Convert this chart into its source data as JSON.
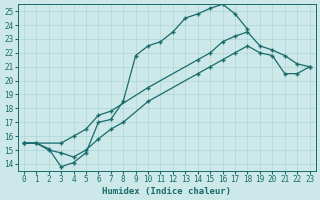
{
  "xlabel": "Humidex (Indice chaleur)",
  "xlim": [
    -0.5,
    23.5
  ],
  "ylim": [
    13.5,
    25.5
  ],
  "xticks": [
    0,
    1,
    2,
    3,
    4,
    5,
    6,
    7,
    8,
    9,
    10,
    11,
    12,
    13,
    14,
    15,
    16,
    17,
    18,
    19,
    20,
    21,
    22,
    23
  ],
  "yticks": [
    14,
    15,
    16,
    17,
    18,
    19,
    20,
    21,
    22,
    23,
    24,
    25
  ],
  "bg_color": "#cce8e8",
  "grid_color": "#b0d4d4",
  "line_color": "#1a6b6b",
  "line1_x": [
    0,
    1,
    2,
    3,
    4,
    5,
    6,
    7,
    8,
    9,
    10,
    11,
    12,
    13,
    14,
    15,
    16,
    17,
    18
  ],
  "line1_y": [
    15.5,
    15.5,
    15.1,
    13.8,
    14.1,
    14.8,
    17.0,
    17.2,
    18.5,
    21.8,
    22.5,
    22.8,
    23.5,
    24.5,
    24.8,
    25.2,
    25.5,
    24.8,
    23.7
  ],
  "line2_x": [
    0,
    3,
    4,
    5,
    6,
    7,
    10,
    14,
    15,
    16,
    17,
    18,
    19,
    20,
    21,
    22,
    23
  ],
  "line2_y": [
    15.5,
    15.5,
    16.0,
    16.5,
    17.5,
    17.8,
    19.5,
    21.5,
    22.0,
    22.8,
    23.2,
    23.5,
    22.5,
    22.2,
    21.8,
    21.2,
    21.0
  ],
  "line3_x": [
    0,
    1,
    2,
    3,
    4,
    5,
    6,
    7,
    8,
    10,
    14,
    15,
    16,
    17,
    18,
    19,
    20,
    21,
    22,
    23
  ],
  "line3_y": [
    15.5,
    15.5,
    15.0,
    14.8,
    14.5,
    15.0,
    15.8,
    16.5,
    17.0,
    18.5,
    20.5,
    21.0,
    21.5,
    22.0,
    22.5,
    22.0,
    21.8,
    20.5,
    20.5,
    21.0
  ],
  "linewidth": 0.9,
  "markersize": 3
}
